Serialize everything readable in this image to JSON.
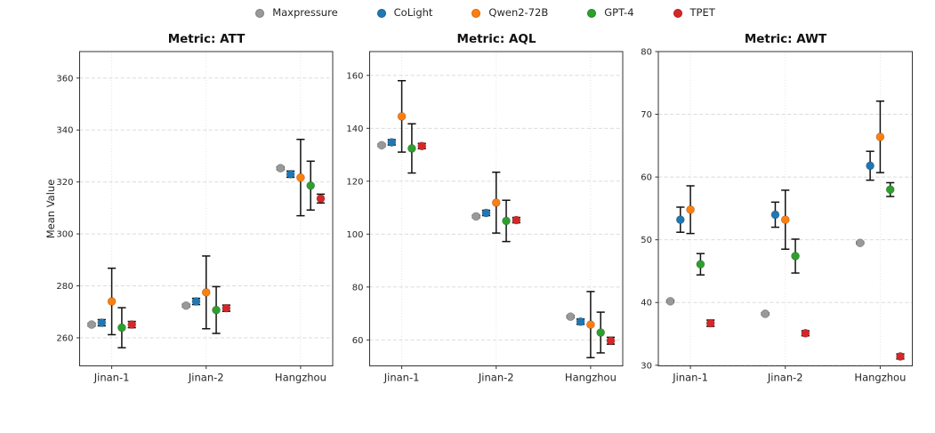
{
  "figure": {
    "background": "#ffffff"
  },
  "legend": {
    "position": "top-center",
    "items": [
      {
        "label": "Maxpressure",
        "color": "#999999"
      },
      {
        "label": "CoLight",
        "color": "#1f77b4"
      },
      {
        "label": "Qwen2-72B",
        "color": "#ff7f0e"
      },
      {
        "label": "GPT-4",
        "color": "#2ca02c"
      },
      {
        "label": "TPET",
        "color": "#d62728"
      }
    ]
  },
  "chart_data": [
    {
      "type": "scatter",
      "title": "Metric: ATT",
      "ylabel": "Mean Value",
      "categories": [
        "Jinan-1",
        "Jinan-2",
        "Hangzhou"
      ],
      "ylim": [
        249.2,
        370.2
      ],
      "yticks": [
        260,
        280,
        300,
        320,
        340,
        360
      ],
      "grid": true,
      "series": [
        {
          "name": "Maxpressure",
          "color": "#999999",
          "values": [
            265.1,
            272.4,
            325.3
          ],
          "errors": [
            0.5,
            0.5,
            0.5
          ]
        },
        {
          "name": "CoLight",
          "color": "#1f77b4",
          "values": [
            265.8,
            274.0,
            323.0
          ],
          "errors": [
            1.2,
            1.2,
            1.2
          ]
        },
        {
          "name": "Qwen2-72B",
          "color": "#ff7f0e",
          "values": [
            274.0,
            277.5,
            321.7
          ],
          "errors": [
            12.8,
            14.0,
            14.7
          ]
        },
        {
          "name": "GPT-4",
          "color": "#2ca02c",
          "values": [
            263.9,
            270.7,
            318.6
          ],
          "errors": [
            7.7,
            9.0,
            9.4
          ]
        },
        {
          "name": "TPET",
          "color": "#d62728",
          "values": [
            265.1,
            271.4,
            313.6
          ],
          "errors": [
            1.2,
            1.2,
            1.7
          ]
        }
      ]
    },
    {
      "type": "scatter",
      "title": "Metric: AQL",
      "ylabel": "",
      "categories": [
        "Jinan-1",
        "Jinan-2",
        "Hangzhou"
      ],
      "ylim": [
        50.2,
        169.0
      ],
      "yticks": [
        60,
        80,
        100,
        120,
        140,
        160
      ],
      "grid": true,
      "series": [
        {
          "name": "Maxpressure",
          "color": "#999999",
          "values": [
            133.6,
            106.7,
            68.8
          ],
          "errors": [
            0.4,
            0.4,
            0.4
          ]
        },
        {
          "name": "CoLight",
          "color": "#1f77b4",
          "values": [
            134.7,
            108.0,
            66.9
          ],
          "errors": [
            1.0,
            1.0,
            1.0
          ]
        },
        {
          "name": "Qwen2-72B",
          "color": "#ff7f0e",
          "values": [
            144.5,
            111.9,
            65.8
          ],
          "errors": [
            13.5,
            11.5,
            12.5
          ]
        },
        {
          "name": "GPT-4",
          "color": "#2ca02c",
          "values": [
            132.4,
            105.0,
            62.8
          ],
          "errors": [
            9.3,
            7.8,
            7.7
          ]
        },
        {
          "name": "TPET",
          "color": "#d62728",
          "values": [
            133.3,
            105.3,
            59.7
          ],
          "errors": [
            1.0,
            1.0,
            1.3
          ]
        }
      ]
    },
    {
      "type": "scatter",
      "title": "Metric: AWT",
      "ylabel": "",
      "categories": [
        "Jinan-1",
        "Jinan-2",
        "Hangzhou"
      ],
      "ylim": [
        29.9,
        80.0
      ],
      "yticks": [
        30,
        40,
        50,
        60,
        70,
        80
      ],
      "grid": true,
      "series": [
        {
          "name": "Maxpressure",
          "color": "#999999",
          "values": [
            40.2,
            38.2,
            49.5
          ],
          "errors": [
            0.15,
            0.15,
            0.15
          ]
        },
        {
          "name": "CoLight",
          "color": "#1f77b4",
          "values": [
            53.2,
            54.0,
            61.8
          ],
          "errors": [
            2.0,
            2.0,
            2.3
          ]
        },
        {
          "name": "Qwen2-72B",
          "color": "#ff7f0e",
          "values": [
            54.8,
            53.2,
            66.4
          ],
          "errors": [
            3.8,
            4.7,
            5.7
          ]
        },
        {
          "name": "GPT-4",
          "color": "#2ca02c",
          "values": [
            46.1,
            47.4,
            58.0
          ],
          "errors": [
            1.7,
            2.7,
            1.1
          ]
        },
        {
          "name": "TPET",
          "color": "#d62728",
          "values": [
            36.7,
            35.1,
            31.4
          ],
          "errors": [
            0.5,
            0.4,
            0.4
          ]
        }
      ]
    }
  ]
}
